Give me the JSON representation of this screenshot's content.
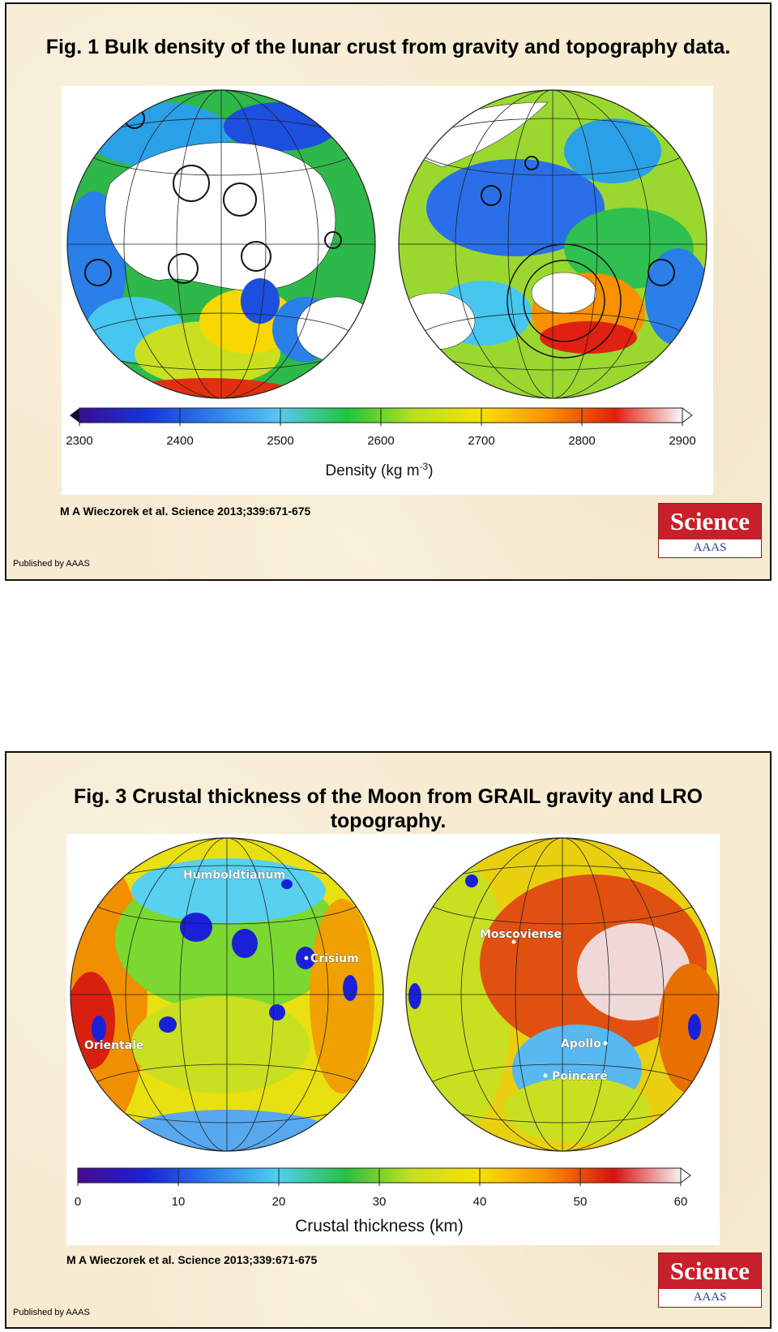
{
  "slides": [
    {
      "title": "Fig. 1 Bulk density of the lunar crust from gravity and topography data.",
      "citation": "M A Wieczorek et al. Science 2013;339:671-675",
      "published": "Published by AAAS",
      "logo_word": "Science",
      "logo_sub": "AAAS"
    },
    {
      "title": "Fig. 3 Crustal thickness of the Moon from GRAIL gravity and LRO topography.",
      "citation": "M A Wieczorek et al. Science 2013;339:671-675",
      "published": "Published by AAAS",
      "logo_word": "Science",
      "logo_sub": "AAAS"
    }
  ],
  "chart_data": [
    {
      "type": "heatmap",
      "title": "Fig. 1 Bulk density of the lunar crust from gravity and topography data.",
      "xlabel": "Density (kg m-3)",
      "colorbar": {
        "min": 2300,
        "max": 2900,
        "ticks": [
          "2300",
          "2400",
          "2500",
          "2600",
          "2700",
          "2800",
          "2900"
        ],
        "label_main": "Density (kg m",
        "label_exp": "-3",
        "label_close": ")",
        "stops": [
          "#3a0d8f",
          "#1434d8",
          "#2f7fe8",
          "#58c8f0",
          "#22c43c",
          "#b8e020",
          "#f8e000",
          "#f89000",
          "#e02010",
          "#f8f8f8"
        ]
      },
      "panels": [
        "nearside hemisphere",
        "farside hemisphere"
      ],
      "place_labels": []
    },
    {
      "type": "heatmap",
      "title": "Fig. 3 Crustal thickness of the Moon from GRAIL gravity and LRO topography.",
      "xlabel": "Crustal thickness (km)",
      "colorbar": {
        "min": 0,
        "max": 60,
        "ticks": [
          "0",
          "10",
          "20",
          "30",
          "40",
          "50",
          "60"
        ],
        "label_main": "Crustal thickness (km)",
        "label_exp": "",
        "label_close": "",
        "stops": [
          "#4a0a8a",
          "#1a20d8",
          "#2a7ee8",
          "#50d0f0",
          "#28c040",
          "#c8e020",
          "#f8e000",
          "#f89000",
          "#d81010",
          "#f8f0f0"
        ]
      },
      "panels": [
        "nearside hemisphere",
        "farside hemisphere"
      ],
      "place_labels": [
        "Humboldtianum",
        "Crisium",
        "Orientale",
        "Moscoviense",
        "Apollo",
        "Poincaré"
      ]
    }
  ],
  "colors": {
    "slide_bg": "#f7ecd2",
    "science_red": "#c8202a",
    "aaas_blue": "#1f3f8f"
  }
}
